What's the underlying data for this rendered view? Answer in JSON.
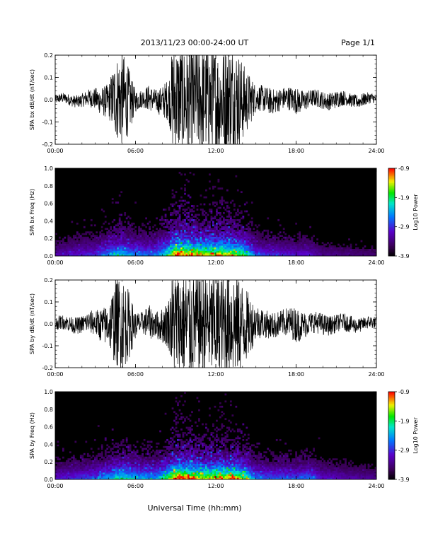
{
  "header": {
    "title": "2013/11/23  00:00-24:00 UT",
    "page": "Page 1/1"
  },
  "xlabel": "Universal Time (hh:mm)",
  "colors": {
    "trace": "#000000",
    "background": "#ffffff"
  },
  "chart_data": [
    {
      "type": "line",
      "ylabel": "SPA bx dB/dt (nT/sec)",
      "xlim": [
        0,
        24
      ],
      "ylim": [
        -0.2,
        0.2
      ],
      "yticks": [
        "-0.2",
        "-0.1",
        "0.0",
        "0.1",
        "0.2"
      ],
      "xticks": [
        "00:00",
        "06:00",
        "12:00",
        "18:00",
        "24:00"
      ],
      "envelope": {
        "x": [
          0,
          2,
          3,
          4,
          4.5,
          5,
          5.5,
          6,
          6.5,
          7,
          7.5,
          8,
          8.5,
          8.8,
          9,
          10,
          11,
          12,
          13,
          13.5,
          14,
          15,
          16,
          17,
          18,
          19,
          20,
          21,
          22,
          23,
          24
        ],
        "amp": [
          0.02,
          0.03,
          0.05,
          0.08,
          0.18,
          0.22,
          0.15,
          0.05,
          0.04,
          0.06,
          0.05,
          0.07,
          0.1,
          0.25,
          0.25,
          0.25,
          0.25,
          0.25,
          0.25,
          0.25,
          0.18,
          0.06,
          0.06,
          0.05,
          0.06,
          0.04,
          0.04,
          0.04,
          0.03,
          0.03,
          0.02
        ]
      }
    },
    {
      "type": "heatmap",
      "ylabel": "SPA bx Freq (Hz)",
      "xlim": [
        0,
        24
      ],
      "ylim": [
        0,
        1.0
      ],
      "yticks": [
        "0.0",
        "0.2",
        "0.4",
        "0.6",
        "0.8",
        "1.0"
      ],
      "xticks": [
        "00:00",
        "06:00",
        "12:00",
        "18:00",
        "24:00"
      ],
      "colorbar": {
        "label": "Log10 Power",
        "ticks": [
          "-0.9",
          "-1.9",
          "-2.9",
          "-3.9"
        ],
        "range": [
          -3.9,
          -0.9
        ]
      },
      "activity": {
        "x": [
          0,
          3,
          4.5,
          5,
          6,
          7.5,
          8.5,
          9,
          10,
          11,
          12,
          13,
          14,
          15,
          16,
          18,
          19,
          20,
          24
        ],
        "level": [
          0.25,
          0.35,
          0.55,
          0.6,
          0.45,
          0.45,
          0.7,
          1.0,
          0.95,
          0.85,
          0.9,
          0.85,
          0.75,
          0.4,
          0.35,
          0.3,
          0.3,
          0.2,
          0.15
        ]
      }
    },
    {
      "type": "line",
      "ylabel": "SPA by dB/dt (nT/sec)",
      "xlim": [
        0,
        24
      ],
      "ylim": [
        -0.2,
        0.2
      ],
      "yticks": [
        "-0.2",
        "-0.1",
        "0.0",
        "0.1",
        "0.2"
      ],
      "xticks": [
        "00:00",
        "06:00",
        "12:00",
        "18:00",
        "24:00"
      ],
      "envelope": {
        "x": [
          0,
          2,
          3,
          4,
          4.5,
          5,
          5.5,
          6,
          6.5,
          7,
          7.5,
          8,
          8.5,
          8.8,
          9,
          10,
          11,
          12,
          13,
          13.5,
          14,
          15,
          16,
          17,
          18,
          19,
          20,
          21,
          22,
          23,
          24
        ],
        "amp": [
          0.03,
          0.04,
          0.06,
          0.1,
          0.2,
          0.22,
          0.16,
          0.06,
          0.05,
          0.08,
          0.06,
          0.08,
          0.12,
          0.25,
          0.25,
          0.25,
          0.25,
          0.25,
          0.25,
          0.25,
          0.2,
          0.08,
          0.06,
          0.06,
          0.08,
          0.05,
          0.05,
          0.04,
          0.04,
          0.03,
          0.03
        ]
      }
    },
    {
      "type": "heatmap",
      "ylabel": "SPA by Freq (Hz)",
      "xlim": [
        0,
        24
      ],
      "ylim": [
        0,
        1.0
      ],
      "yticks": [
        "0.0",
        "0.2",
        "0.4",
        "0.6",
        "0.8",
        "1.0"
      ],
      "xticks": [
        "00:00",
        "06:00",
        "12:00",
        "18:00",
        "24:00"
      ],
      "colorbar": {
        "label": "Log10 Power",
        "ticks": [
          "-0.9",
          "-1.9",
          "-2.9",
          "-3.9"
        ],
        "range": [
          -3.9,
          -0.9
        ]
      },
      "activity": {
        "x": [
          0,
          3,
          4.5,
          5,
          6,
          7.5,
          8.5,
          9,
          10,
          11,
          12,
          13,
          14,
          15,
          16,
          18,
          19,
          20,
          24
        ],
        "level": [
          0.3,
          0.4,
          0.6,
          0.65,
          0.55,
          0.5,
          0.75,
          1.0,
          0.95,
          0.85,
          0.9,
          0.9,
          0.8,
          0.45,
          0.4,
          0.4,
          0.45,
          0.3,
          0.2
        ]
      }
    }
  ]
}
